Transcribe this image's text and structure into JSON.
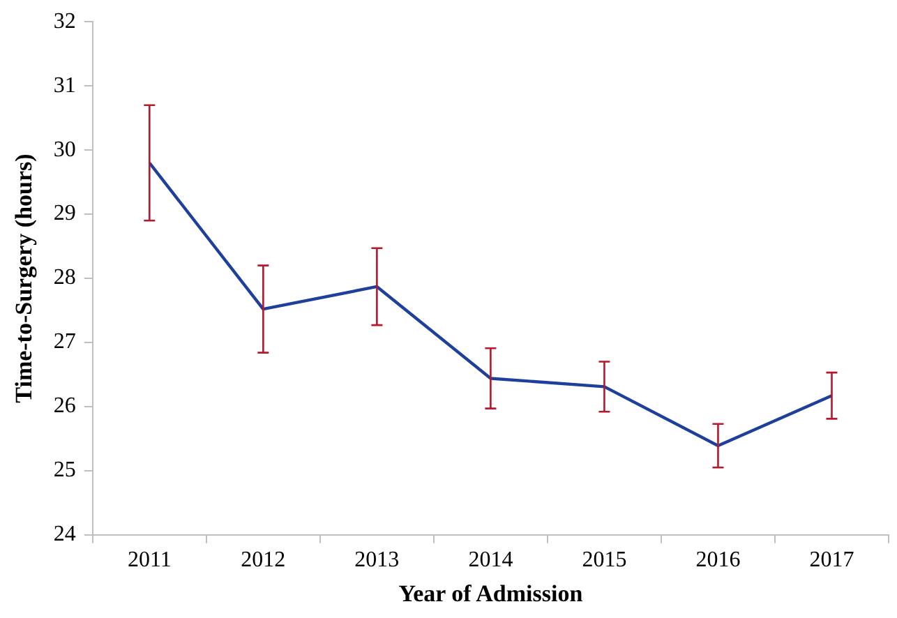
{
  "chart_data": {
    "type": "line",
    "xlabel": "Year of Admission",
    "ylabel": "Time-to-Surgery (hours)",
    "categories": [
      "2011",
      "2012",
      "2013",
      "2014",
      "2015",
      "2016",
      "2017"
    ],
    "series": [
      {
        "color": "#1f3f9c",
        "values": [
          29.8,
          27.52,
          27.87,
          26.44,
          26.31,
          25.39,
          26.17
        ],
        "errors": [
          0.9,
          0.68,
          0.6,
          0.47,
          0.39,
          0.34,
          0.36
        ]
      }
    ],
    "ylim": [
      24,
      32
    ],
    "yticks": [
      24,
      25,
      26,
      27,
      28,
      29,
      30,
      31,
      32
    ],
    "grid": false,
    "legend": false,
    "marker": "none",
    "line_style": "solid"
  }
}
